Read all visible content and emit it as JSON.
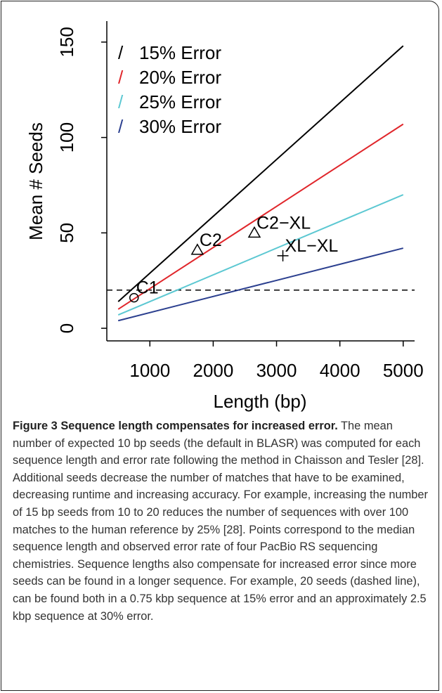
{
  "chart_data": {
    "type": "line",
    "xlabel": "Length (bp)",
    "ylabel": "Mean # Seeds",
    "x": [
      500,
      5000
    ],
    "series": [
      {
        "name": "15% Error",
        "color": "#000000",
        "values": [
          14,
          148
        ]
      },
      {
        "name": "20% Error",
        "color": "#e0262b",
        "values": [
          10,
          107
        ]
      },
      {
        "name": "25% Error",
        "color": "#5cc8d2",
        "values": [
          7,
          70
        ]
      },
      {
        "name": "30% Error",
        "color": "#2b3f8f",
        "values": [
          4,
          42
        ]
      }
    ],
    "hline": 20,
    "points": [
      {
        "label": "C1",
        "x": 750,
        "y": 16,
        "marker": "circle"
      },
      {
        "label": "C2",
        "x": 1750,
        "y": 41,
        "marker": "triangle"
      },
      {
        "label": "C2−XL",
        "x": 2650,
        "y": 50,
        "marker": "triangle"
      },
      {
        "label": "XL−XL",
        "x": 3100,
        "y": 38,
        "marker": "plus"
      }
    ],
    "xlim": [
      320,
      5180
    ],
    "ylim": [
      -6.6,
      161
    ],
    "xticks": [
      1000,
      2000,
      3000,
      4000,
      5000
    ],
    "yticks": [
      0,
      50,
      100,
      150
    ],
    "legend": "top-left"
  },
  "caption": {
    "label": "Figure 3",
    "title": "Sequence length compensates for increased error.",
    "text": "The mean number of expected 10 bp seeds (the default in BLASR) was computed for each sequence length and error rate following the method in Chaisson and Tesler [28]. Additional seeds decrease the number of matches that have to be examined, decreasing runtime and increasing accuracy. For example, increasing the number of 15 bp seeds from 10 to 20 reduces the number of sequences with over 100 matches to the human reference by 25% [28]. Points correspond to the median sequence length and observed error rate of four PacBio RS sequencing chemistries. Sequence lengths also compensate for increased error since more seeds can be found in a longer sequence. For example, 20 seeds (dashed line), can be found both in a 0.75 kbp sequence at 15% error and an approximately 2.5 kbp sequence at 30% error."
  }
}
